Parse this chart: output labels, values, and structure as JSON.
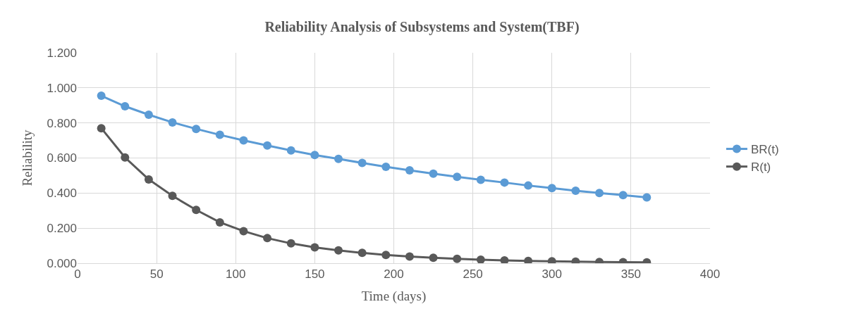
{
  "chart_data": {
    "type": "line",
    "title": "Reliability Analysis of Subsystems and System(TBF)",
    "xlabel": "Time (days)",
    "ylabel": "Reliability",
    "x": [
      15,
      30,
      45,
      60,
      75,
      90,
      105,
      120,
      135,
      150,
      165,
      180,
      195,
      210,
      225,
      240,
      255,
      270,
      285,
      300,
      315,
      330,
      345,
      360
    ],
    "series": [
      {
        "name": "BR(t)",
        "color": "#5b9bd5",
        "values": [
          0.955,
          0.895,
          0.847,
          0.803,
          0.766,
          0.732,
          0.7,
          0.671,
          0.643,
          0.617,
          0.595,
          0.572,
          0.55,
          0.53,
          0.511,
          0.493,
          0.476,
          0.46,
          0.443,
          0.428,
          0.413,
          0.4,
          0.388,
          0.375
        ]
      },
      {
        "name": "R(t)",
        "color": "#595959",
        "values": [
          0.77,
          0.603,
          0.478,
          0.384,
          0.304,
          0.233,
          0.183,
          0.143,
          0.113,
          0.09,
          0.073,
          0.059,
          0.047,
          0.038,
          0.031,
          0.025,
          0.02,
          0.016,
          0.013,
          0.011,
          0.009,
          0.007,
          0.006,
          0.005
        ]
      }
    ],
    "xlim": [
      0,
      400
    ],
    "xticks": [
      0,
      50,
      100,
      150,
      200,
      250,
      300,
      350,
      400
    ],
    "ylim": [
      0,
      1.2
    ],
    "yticks": [
      {
        "value": 0,
        "label": "0.000"
      },
      {
        "value": 0.2,
        "label": "0.200"
      },
      {
        "value": 0.4,
        "label": "0.400"
      },
      {
        "value": 0.6,
        "label": "0.600"
      },
      {
        "value": 0.8,
        "label": "0.800"
      },
      {
        "value": 1.0,
        "label": "1.000"
      },
      {
        "value": 1.2,
        "label": "1.200"
      }
    ],
    "grid": true,
    "legend": "right",
    "marker": "circle",
    "line_style": "solid"
  }
}
